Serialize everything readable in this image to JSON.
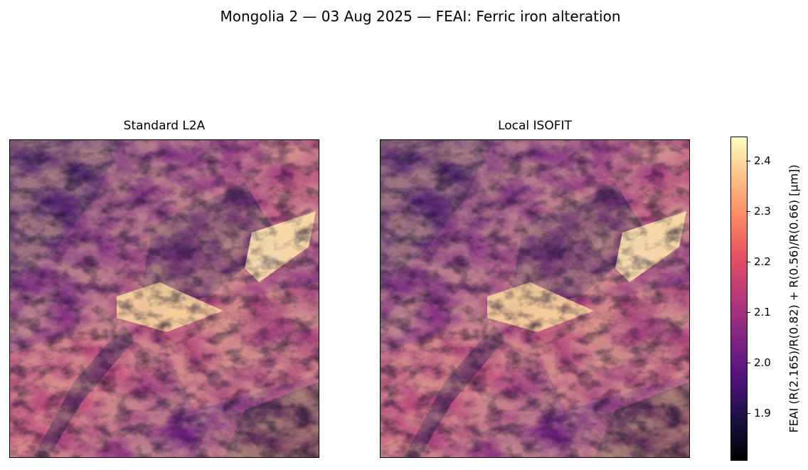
{
  "title": "Mongolia 2 — 03 Aug 2025 — FEAI: Ferric iron alteration",
  "panels": [
    {
      "title": "Standard L2A"
    },
    {
      "title": "Local ISOFIT"
    }
  ],
  "colorbar": {
    "label": "FEAI  (R(2.165)/R(0.82) + R(0.56)/R(0.66)  [µm])",
    "colormap": "magma",
    "range": [
      1.81,
      2.45
    ],
    "ticks": [
      "2.4",
      "2.3",
      "2.2",
      "2.1",
      "2.0",
      "1.9"
    ],
    "tick_values": [
      2.4,
      2.3,
      2.2,
      2.1,
      2.0,
      1.9
    ]
  }
}
